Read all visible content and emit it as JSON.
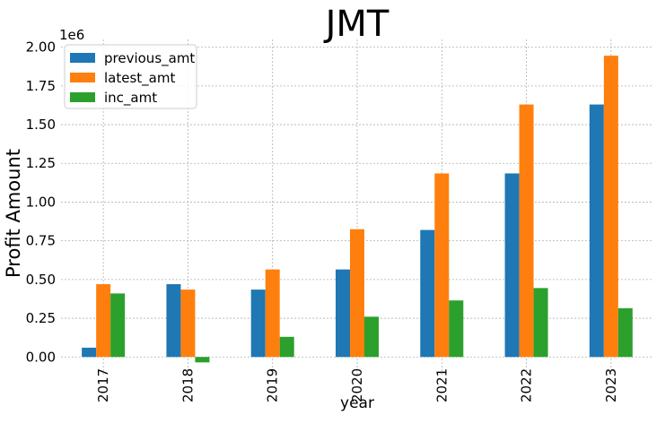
{
  "chart_data": {
    "type": "bar",
    "title": "JMT",
    "xlabel": "year",
    "ylabel": "Profit Amount",
    "y_offset_label": "1e6",
    "categories": [
      "2017",
      "2018",
      "2019",
      "2020",
      "2021",
      "2022",
      "2023"
    ],
    "series": [
      {
        "name": "previous_amt",
        "color": "#1f77b4",
        "values": [
          0.06,
          0.47,
          0.435,
          0.565,
          0.82,
          1.185,
          1.63
        ]
      },
      {
        "name": "latest_amt",
        "color": "#ff7f0e",
        "values": [
          0.47,
          0.435,
          0.565,
          0.825,
          1.185,
          1.63,
          1.945
        ]
      },
      {
        "name": "inc_amt",
        "color": "#2ca02c",
        "values": [
          0.41,
          -0.035,
          0.13,
          0.26,
          0.365,
          0.445,
          0.315
        ]
      }
    ],
    "ylim": [
      -0.12,
      2.05
    ],
    "yticks": [
      "0.00",
      "0.25",
      "0.50",
      "0.75",
      "1.00",
      "1.25",
      "1.50",
      "1.75",
      "2.00"
    ],
    "grid": true,
    "legend": "top-left"
  }
}
